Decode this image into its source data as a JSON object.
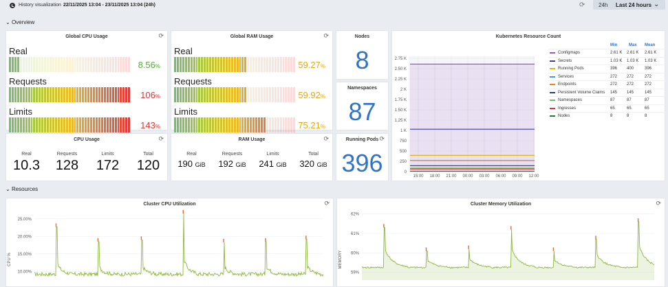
{
  "topbar": {
    "title": "History visualization",
    "range": "22/11/2025 13:04 - 23/11/2025 13:04 (24h)",
    "short": "24h",
    "label": "Last 24 hours"
  },
  "sections": {
    "overview": "Overview",
    "resources": "Resources"
  },
  "cpu_usage": {
    "title": "Global CPU Usage",
    "rows": [
      {
        "label": "Real",
        "value": "8.56",
        "unit": "%",
        "fill": 0.0856
      },
      {
        "label": "Requests",
        "value": "106",
        "unit": "%",
        "fill": 1.0
      },
      {
        "label": "Limits",
        "value": "143",
        "unit": "%",
        "fill": 1.0
      }
    ]
  },
  "ram_usage": {
    "title": "Global RAM Usage",
    "rows": [
      {
        "label": "Real",
        "value": "59.27",
        "unit": "%",
        "fill": 0.5927
      },
      {
        "label": "Requests",
        "value": "59.92",
        "unit": "%",
        "fill": 0.5992
      },
      {
        "label": "Limits",
        "value": "75.21",
        "unit": "%",
        "fill": 0.7521
      }
    ]
  },
  "nodes": {
    "title": "Nodes",
    "value": "8"
  },
  "namespaces": {
    "title": "Namespaces",
    "value": "87"
  },
  "running_pods": {
    "title": "Running Pods",
    "value": "396"
  },
  "cpu_stat": {
    "title": "CPU Usage",
    "cells": [
      {
        "label": "Real",
        "value": "10.3",
        "unit": ""
      },
      {
        "label": "Requests",
        "value": "128",
        "unit": ""
      },
      {
        "label": "Limits",
        "value": "172",
        "unit": ""
      },
      {
        "label": "Total",
        "value": "120",
        "unit": ""
      }
    ]
  },
  "ram_stat": {
    "title": "RAM Usage",
    "cells": [
      {
        "label": "Real",
        "value": "190",
        "unit": "GiB"
      },
      {
        "label": "Requests",
        "value": "192",
        "unit": "GiB"
      },
      {
        "label": "Limits",
        "value": "241",
        "unit": "GiB"
      },
      {
        "label": "Total",
        "value": "320",
        "unit": "GiB"
      }
    ]
  },
  "k8s": {
    "title": "Kubernetes Resource Count",
    "headers": [
      "Min",
      "Max",
      "Mean"
    ],
    "rows": [
      {
        "name": "Configmaps",
        "min": "2.61 K",
        "max": "2.61 K",
        "mean": "2.61 K",
        "color": "#a352cc"
      },
      {
        "name": "Secrets",
        "min": "1.03 K",
        "max": "1.03 K",
        "mean": "1.03 K",
        "color": "#3b3f9e"
      },
      {
        "name": "Running Pods",
        "min": "396",
        "max": "400",
        "mean": "396",
        "color": "#e0b400"
      },
      {
        "name": "Services",
        "min": "272",
        "max": "272",
        "mean": "272",
        "color": "#3d9be0"
      },
      {
        "name": "Endpoints",
        "min": "272",
        "max": "272",
        "mean": "272",
        "color": "#ff7f0e"
      },
      {
        "name": "Persistent Volume Claims",
        "min": "145",
        "max": "145",
        "mean": "145",
        "color": "#1f3b8a"
      },
      {
        "name": "Namespaces",
        "min": "87",
        "max": "87",
        "mean": "87",
        "color": "#73bf69"
      },
      {
        "name": "Ingresses",
        "min": "65",
        "max": "65",
        "mean": "65",
        "color": "#e02f44"
      },
      {
        "name": "Nodes",
        "min": "8",
        "max": "8",
        "mean": "8",
        "color": "#1a7f2e"
      }
    ]
  },
  "chart_data": [
    {
      "type": "line",
      "title": "Kubernetes Resource Count",
      "x_ticks": [
        "15:00",
        "18:00",
        "21:00",
        "00:00",
        "03:00",
        "06:00",
        "09:00",
        "12:00"
      ],
      "y_ticks": [
        "0",
        "250",
        "500",
        "750",
        "1 K",
        "1.25 K",
        "1.50 K",
        "1.75 K",
        "2 K",
        "2.25 K",
        "2.50 K",
        "2.75 K"
      ],
      "ylim": [
        0,
        2800
      ],
      "series": [
        {
          "name": "Configmaps",
          "value": 2610
        },
        {
          "name": "Secrets",
          "value": 1030
        },
        {
          "name": "Running Pods",
          "value": 396
        },
        {
          "name": "Services",
          "value": 272
        },
        {
          "name": "Endpoints",
          "value": 272
        },
        {
          "name": "Persistent Volume Claims",
          "value": 145
        },
        {
          "name": "Namespaces",
          "value": 87
        },
        {
          "name": "Ingresses",
          "value": 65
        },
        {
          "name": "Nodes",
          "value": 8
        }
      ]
    },
    {
      "type": "line",
      "title": "Cluster CPU Utilization",
      "ylabel": "CPU %",
      "y_ticks": [
        "10.00%",
        "15.00%",
        "20.00%",
        "25.00%"
      ],
      "ylim": [
        7.5,
        27.5
      ],
      "baseline": 9.2,
      "spikes": [
        {
          "t": 0.075,
          "v": 22.7
        },
        {
          "t": 0.22,
          "v": 18.5
        },
        {
          "t": 0.37,
          "v": 19.0
        },
        {
          "t": 0.515,
          "v": 26.5
        },
        {
          "t": 0.655,
          "v": 18.3
        },
        {
          "t": 0.8,
          "v": 18.5
        },
        {
          "t": 0.94,
          "v": 19.2
        }
      ]
    },
    {
      "type": "area",
      "title": "Cluster Memory Utilization",
      "ylabel": "MEMORY",
      "y_ticks": [
        "59%",
        "60%",
        "61%",
        "62%"
      ],
      "ylim": [
        58.6,
        62.2
      ],
      "baseline": 59.25,
      "spikes": [
        {
          "t": 0.075,
          "v": 61.3
        },
        {
          "t": 0.22,
          "v": 60.1
        },
        {
          "t": 0.365,
          "v": 60.2
        },
        {
          "t": 0.51,
          "v": 61.2
        },
        {
          "t": 0.655,
          "v": 60.1
        },
        {
          "t": 0.8,
          "v": 60.7
        },
        {
          "t": 0.945,
          "v": 61.6
        }
      ]
    }
  ],
  "cpu_util": {
    "title": "Cluster CPU Utilization"
  },
  "mem_util": {
    "title": "Cluster Memory Utilization"
  }
}
